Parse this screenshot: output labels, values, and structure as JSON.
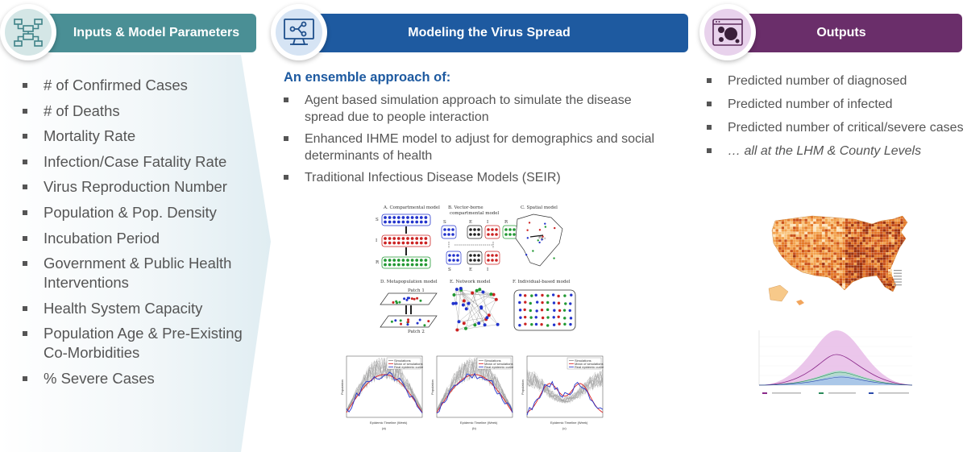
{
  "inputs": {
    "title": "Inputs & Model Parameters",
    "icon": "workflow-diagram-icon",
    "items": [
      "# of Confirmed Cases",
      "# of Deaths",
      "Mortality Rate",
      "Infection/Case Fatality Rate",
      "Virus Reproduction Number",
      "Population & Pop. Density",
      "Incubation Period",
      "Government & Public Health Interventions",
      "Health System Capacity",
      "Population Age & Pre-Existing Co-Morbidities",
      "% Severe Cases"
    ]
  },
  "model": {
    "title": "Modeling the Virus Spread",
    "icon": "monitor-network-icon",
    "subtitle": "An ensemble approach of:",
    "items": [
      "Agent based simulation approach to simulate the disease spread due to people interaction",
      "Enhanced IHME model to adjust for demographics and social determinants of health",
      "Traditional Infectious Disease Models (SEIR)"
    ],
    "figure_labels": {
      "a": "A. Compartmental model",
      "b1": "B. Vector-borne",
      "b2": "compartmental model",
      "c": "C. Spatial model",
      "d": "D. Metapopulation model",
      "e": "E. Network model",
      "f": "F. Individual-based model",
      "patch1": "Patch 1",
      "patch2": "Patch 2",
      "S": "S",
      "I": "I",
      "R": "R",
      "SH": "S",
      "EH": "E",
      "IH": "I",
      "RH": "R",
      "SM": "S",
      "EM": "E",
      "IM": "I",
      "sub_H": "H",
      "sub_M": "M",
      "rho": "R",
      "rho_sub": "ij,t"
    },
    "sim_panels": [
      {
        "letter": "(a)",
        "legend": [
          "Simulations",
          "Mean of simulations",
          "Real epidemic curve"
        ],
        "xlabel": "Epidemic Timeline (Week)",
        "ylabel": "Population"
      },
      {
        "letter": "(b)",
        "legend": [
          "Simulations",
          "Mean of simulations",
          "Real epidemic curve"
        ],
        "xlabel": "Epidemic Timeline (Week)",
        "ylabel": "Population"
      },
      {
        "letter": "(c)",
        "legend": [
          "Simulations",
          "Mean of simulations",
          "Real epidemic curve"
        ],
        "xlabel": "Epidemic Timeline (Week)",
        "ylabel": "Population"
      }
    ]
  },
  "outputs": {
    "title": "Outputs",
    "icon": "browser-bubbles-icon",
    "items": [
      "Predicted number of diagnosed",
      "Predicted number of infected",
      "Predicted number of critical/severe cases",
      "… all at the LHM & County Levels"
    ]
  },
  "colors": {
    "inputs": "#4a8f95",
    "model": "#1e5aa0",
    "outputs": "#6a2e6a",
    "text": "#555555"
  }
}
